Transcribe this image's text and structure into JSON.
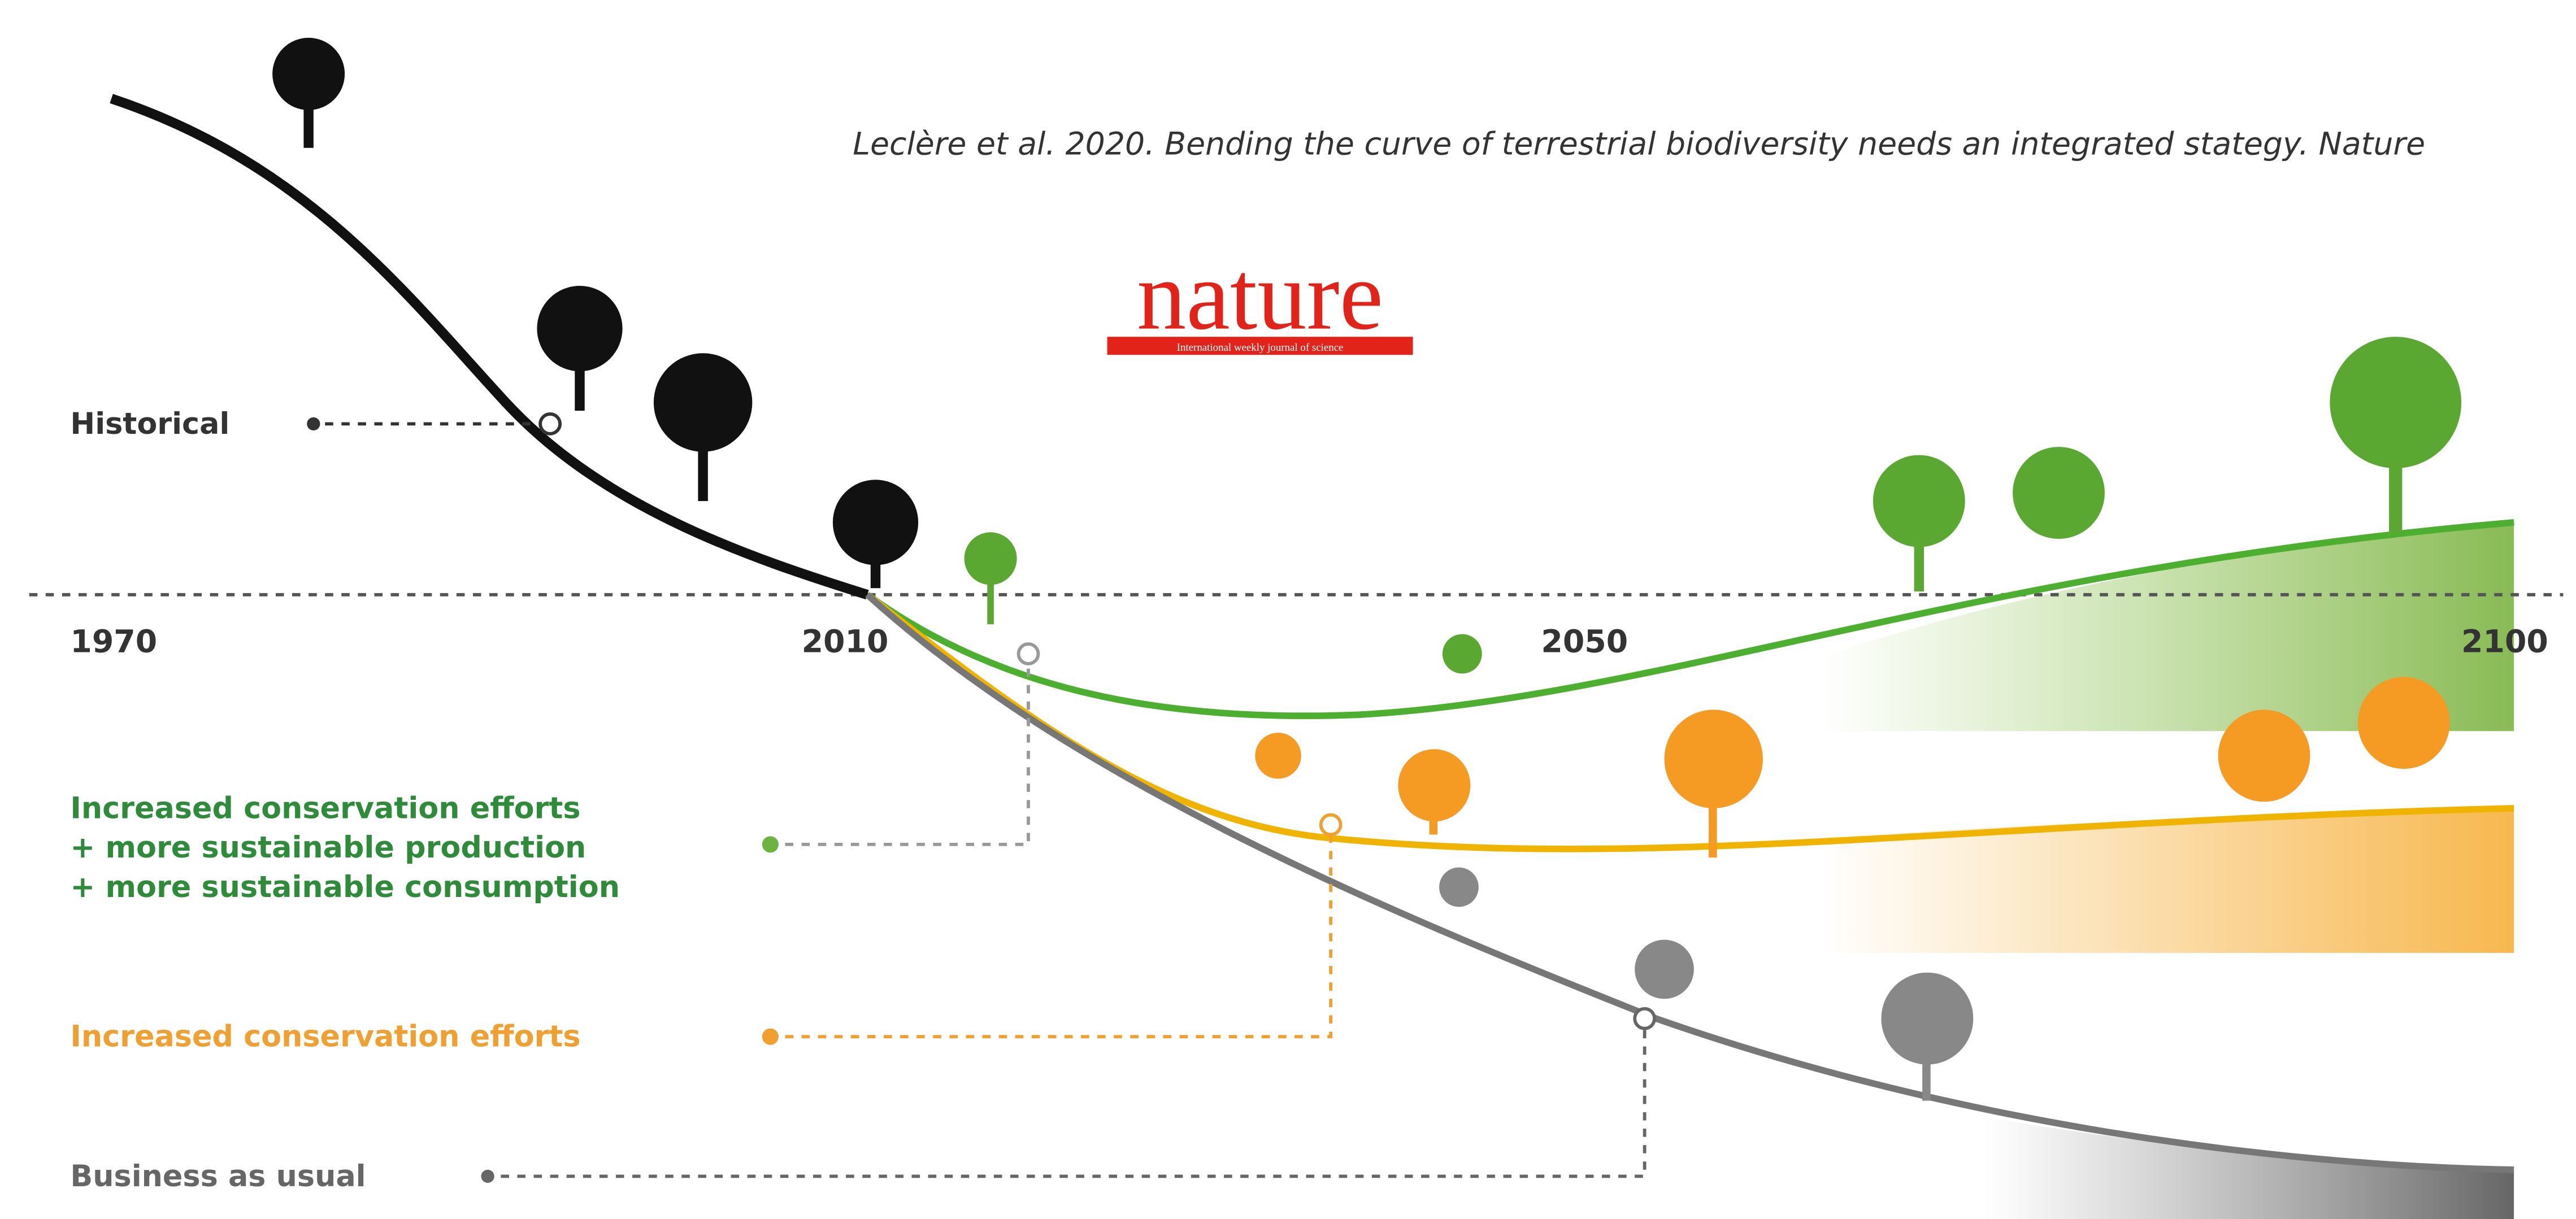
{
  "citation": "Leclère et al. 2020. Bending the curve of terrestrial biodiversity needs an integrated stategy. Nature",
  "logo": {
    "name": "nature",
    "tagline": "International weekly journal of science"
  },
  "timeline": {
    "years": [
      "1970",
      "2010",
      "2050",
      "2100"
    ]
  },
  "scenarios": [
    {
      "lines": [
        "Historical"
      ]
    },
    {
      "lines": [
        "Increased conservation efforts",
        "+ more sustainable production",
        "+ more sustainable consumption"
      ]
    },
    {
      "lines": [
        "Increased conservation efforts"
      ]
    },
    {
      "lines": [
        "Business as usual"
      ]
    }
  ]
}
